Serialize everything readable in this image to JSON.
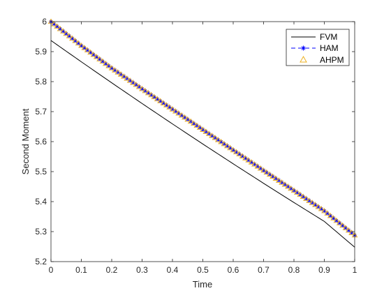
{
  "chart_data": {
    "type": "line",
    "title": "",
    "xlabel": "Time",
    "ylabel": "Second Moment",
    "xlim": [
      0,
      1
    ],
    "ylim": [
      5.2,
      6
    ],
    "xticks": [
      0,
      0.1,
      0.2,
      0.3,
      0.4,
      0.5,
      0.6,
      0.7,
      0.8,
      0.9,
      1
    ],
    "xtick_labels": [
      "0",
      "0.1",
      "0.2",
      "0.3",
      "0.4",
      "0.5",
      "0.6",
      "0.7",
      "0.8",
      "0.9",
      "1"
    ],
    "yticks": [
      5.2,
      5.3,
      5.4,
      5.5,
      5.6,
      5.7,
      5.8,
      5.9,
      6
    ],
    "ytick_labels": [
      "5.2",
      "5.3",
      "5.4",
      "5.5",
      "5.6",
      "5.7",
      "5.8",
      "5.9",
      "6"
    ],
    "grid": false,
    "legend_position": "top-right",
    "x": [
      0,
      0.1,
      0.2,
      0.3,
      0.4,
      0.5,
      0.6,
      0.7,
      0.8,
      0.9,
      1
    ],
    "series": [
      {
        "name": "FVM",
        "style": "solid-line",
        "color": "#000000",
        "values": [
          5.937,
          5.866,
          5.796,
          5.727,
          5.659,
          5.592,
          5.526,
          5.461,
          5.397,
          5.334,
          5.248
        ]
      },
      {
        "name": "HAM",
        "style": "dashed-line-star-markers",
        "color": "#0000ff",
        "values": [
          6.0,
          5.92,
          5.845,
          5.776,
          5.708,
          5.64,
          5.572,
          5.504,
          5.437,
          5.369,
          5.288
        ]
      },
      {
        "name": "AHPM",
        "style": "triangle-markers",
        "color": "#edb120",
        "values": [
          6.0,
          5.92,
          5.845,
          5.776,
          5.708,
          5.64,
          5.572,
          5.504,
          5.437,
          5.369,
          5.288
        ]
      }
    ]
  }
}
